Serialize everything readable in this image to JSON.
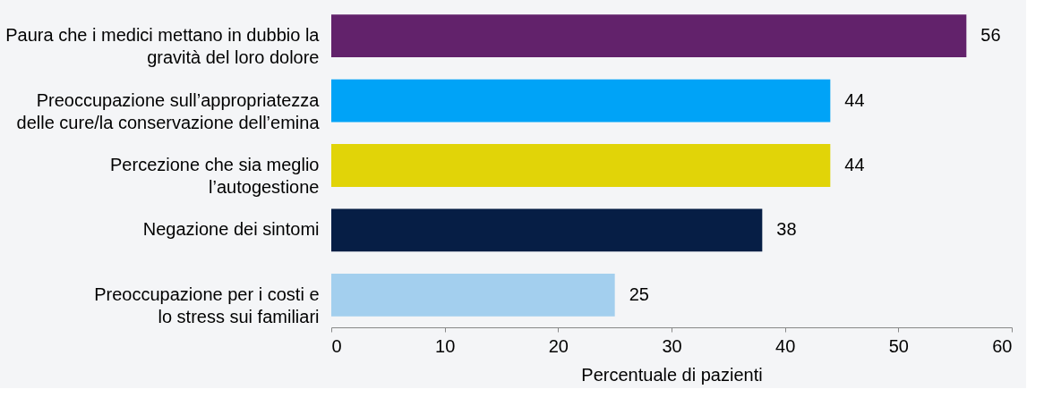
{
  "chart_data": {
    "type": "bar",
    "orientation": "horizontal",
    "categories": [
      "Paura che i medici mettano in dubbio la\ngravità del loro dolore",
      "Preoccupazione sull’appropriatezza\ndelle cure/la conservazione dell’emina",
      "Percezione che sia meglio\nl’autogestione",
      "Negazione dei sintomi",
      "Preoccupazione per i costi e\nlo stress sui familiari"
    ],
    "values": [
      56,
      44,
      44,
      38,
      25
    ],
    "colors": [
      "#62226b",
      "#00a3f7",
      "#e1d408",
      "#061e45",
      "#a3cfee"
    ],
    "xlim": [
      0,
      60
    ],
    "xticks": [
      0,
      10,
      20,
      30,
      40,
      50,
      60
    ],
    "xlabel": "Percentuale di pazienti",
    "data_labels": true,
    "grid": false
  }
}
